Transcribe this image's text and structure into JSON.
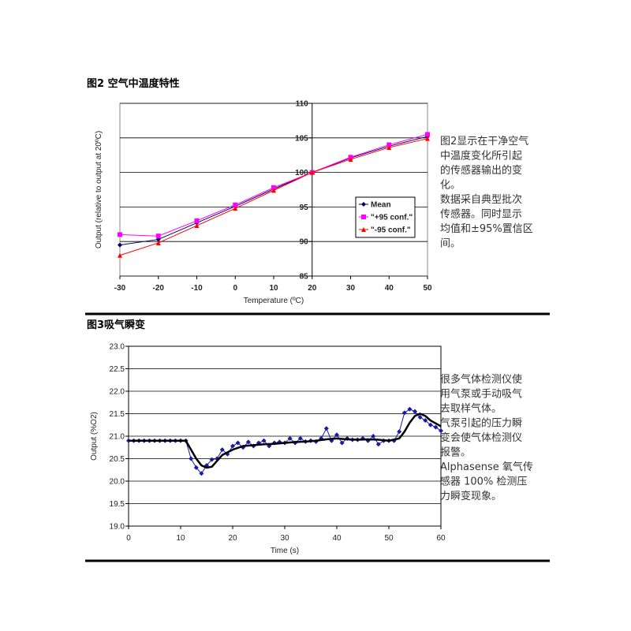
{
  "chart_data": [
    {
      "type": "line",
      "title": "图2 空气中温度特性",
      "x_label": "Temperature (ºC)",
      "y_label": "Output (relative to output at 20ºC)",
      "x": [
        -30,
        -20,
        -10,
        0,
        10,
        20,
        30,
        40,
        50
      ],
      "xlim": [
        -30,
        50
      ],
      "xticks": [
        -30,
        -20,
        -10,
        0,
        10,
        20,
        30,
        40,
        50
      ],
      "ylim": [
        85,
        110
      ],
      "yticks": [
        85,
        90,
        95,
        100,
        105,
        110
      ],
      "y_axis_crossing": 20,
      "grid": true,
      "legend": "center-right",
      "series": [
        {
          "name": "Mean",
          "color": "#000066",
          "marker": "diamond",
          "values": [
            89.5,
            90.3,
            92.7,
            95.1,
            97.6,
            100,
            102.1,
            103.8,
            105.2
          ]
        },
        {
          "name": "\"+95 conf.\"",
          "color": "#ff00ff",
          "marker": "square",
          "values": [
            91.0,
            90.8,
            93.0,
            95.3,
            97.8,
            100,
            102.2,
            104.0,
            105.5
          ]
        },
        {
          "name": "\"-95 conf.\"",
          "color": "#ff0000",
          "marker": "triangle",
          "values": [
            88.0,
            89.8,
            92.3,
            94.8,
            97.4,
            100,
            101.9,
            103.6,
            104.9
          ]
        }
      ]
    },
    {
      "type": "line",
      "title": "图3吸气瞬变",
      "x_label": "Time (s)",
      "y_label": "Output (%O2)",
      "xlim": [
        0,
        60
      ],
      "xticks": [
        0,
        10,
        20,
        30,
        40,
        50,
        60
      ],
      "ylim": [
        19,
        23
      ],
      "yticks": [
        {
          "value": 19,
          "label": "19.0"
        },
        {
          "value": 19.5,
          "label": "19.5"
        },
        {
          "value": 20,
          "label": "20.0"
        },
        {
          "value": 20.5,
          "label": "20.5"
        },
        {
          "value": 21,
          "label": "21.0"
        },
        {
          "value": 21.5,
          "label": "21.5"
        },
        {
          "value": 22,
          "label": "22.0"
        },
        {
          "value": 22.5,
          "label": "22.5"
        },
        {
          "value": 23,
          "label": "23.0"
        }
      ],
      "grid": true,
      "series": [
        {
          "color": "#1a1aa6",
          "marker": "diamond",
          "linewidth": 1,
          "x": [
            0,
            1,
            2,
            3,
            4,
            5,
            6,
            7,
            8,
            9,
            10,
            11,
            12,
            13,
            14,
            15,
            16,
            17,
            18,
            19,
            20,
            21,
            22,
            23,
            24,
            25,
            26,
            27,
            28,
            29,
            30,
            31,
            32,
            33,
            34,
            35,
            36,
            37,
            38,
            39,
            40,
            41,
            42,
            43,
            44,
            45,
            46,
            47,
            48,
            49,
            50,
            51,
            52,
            53,
            54,
            55,
            56,
            57,
            58,
            59,
            60
          ],
          "values": [
            20.9,
            20.9,
            20.9,
            20.9,
            20.9,
            20.9,
            20.9,
            20.9,
            20.9,
            20.9,
            20.9,
            20.9,
            20.5,
            20.3,
            20.17,
            20.35,
            20.48,
            20.5,
            20.7,
            20.6,
            20.78,
            20.85,
            20.75,
            20.87,
            20.78,
            20.85,
            20.9,
            20.78,
            20.85,
            20.87,
            20.85,
            20.95,
            20.85,
            20.95,
            20.88,
            20.9,
            20.88,
            20.95,
            21.17,
            20.9,
            21.03,
            20.85,
            20.95,
            20.92,
            20.92,
            20.95,
            20.9,
            21.0,
            20.82,
            20.9,
            20.9,
            20.9,
            21.1,
            21.52,
            21.6,
            21.55,
            21.42,
            21.35,
            21.25,
            21.2,
            21.12
          ]
        },
        {
          "color": "#000000",
          "marker": "none",
          "linewidth": 2.5,
          "x": [
            0,
            2,
            4,
            6,
            8,
            10,
            11,
            12,
            13,
            14,
            15,
            16,
            17,
            18,
            20,
            22,
            24,
            26,
            28,
            30,
            32,
            34,
            36,
            38,
            40,
            42,
            44,
            46,
            48,
            50,
            52,
            53,
            54,
            55,
            56,
            57,
            58,
            60
          ],
          "values": [
            20.9,
            20.9,
            20.9,
            20.9,
            20.9,
            20.9,
            20.9,
            20.7,
            20.5,
            20.35,
            20.3,
            20.32,
            20.45,
            20.58,
            20.7,
            20.78,
            20.8,
            20.82,
            20.83,
            20.85,
            20.87,
            20.88,
            20.9,
            20.93,
            20.95,
            20.93,
            20.92,
            20.93,
            20.92,
            20.9,
            20.95,
            21.1,
            21.3,
            21.45,
            21.5,
            21.45,
            21.35,
            21.22
          ]
        }
      ]
    }
  ],
  "descriptions": [
    [
      "图2显示在干净空气",
      "中温度变化所引起",
      "的传感器输出的变",
      "化。",
      "数据采自典型批次",
      "传感器。同时显示",
      "均值和±95%置信区",
      "间。"
    ],
    [
      "很多气体检测仪使",
      "用气泵或手动吸气",
      "去取样气体。",
      "气泵引起的压力瞬",
      "变会使气体检测仪",
      "报警。",
      "Alphasense 氧气传",
      "感器 100% 检测压",
      "力瞬变现象。"
    ]
  ]
}
